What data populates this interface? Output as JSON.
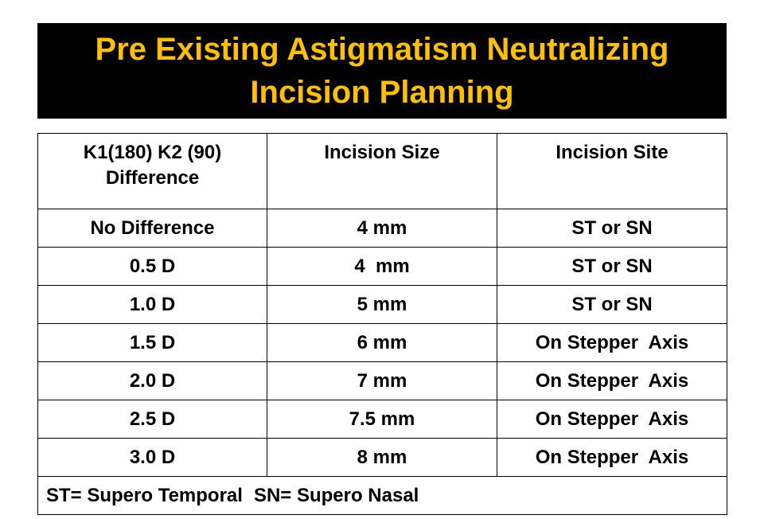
{
  "title": {
    "line1": "Pre Existing Astigmatism Neutralizing",
    "line2": "Incision Planning"
  },
  "colors": {
    "banner_background": "#000000",
    "title_text": "#ffc000",
    "table_border": "#000000"
  },
  "table": {
    "headers": {
      "difference_line1": "K1(180) K2 (90)",
      "difference_line2": "Difference",
      "size": "Incision Size",
      "site": "Incision Site"
    },
    "rows": [
      {
        "difference": "No Difference",
        "size": "4 mm",
        "site": "ST or SN"
      },
      {
        "difference": "0.5 D",
        "size": "4  mm",
        "site": "ST or SN"
      },
      {
        "difference": "1.0 D",
        "size": "5 mm",
        "site": "ST or SN"
      },
      {
        "difference": "1.5 D",
        "size": "6 mm",
        "site": "On Stepper  Axis"
      },
      {
        "difference": "2.0 D",
        "size": "7 mm",
        "site": "On Stepper  Axis"
      },
      {
        "difference": "2.5 D",
        "size": "7.5 mm",
        "site": "On Stepper  Axis"
      },
      {
        "difference": "3.0 D",
        "size": "8 mm",
        "site": "On Stepper  Axis"
      }
    ],
    "footer": {
      "legend_st": "ST= Supero Temporal",
      "legend_sn": "SN= Supero Nasal"
    }
  }
}
